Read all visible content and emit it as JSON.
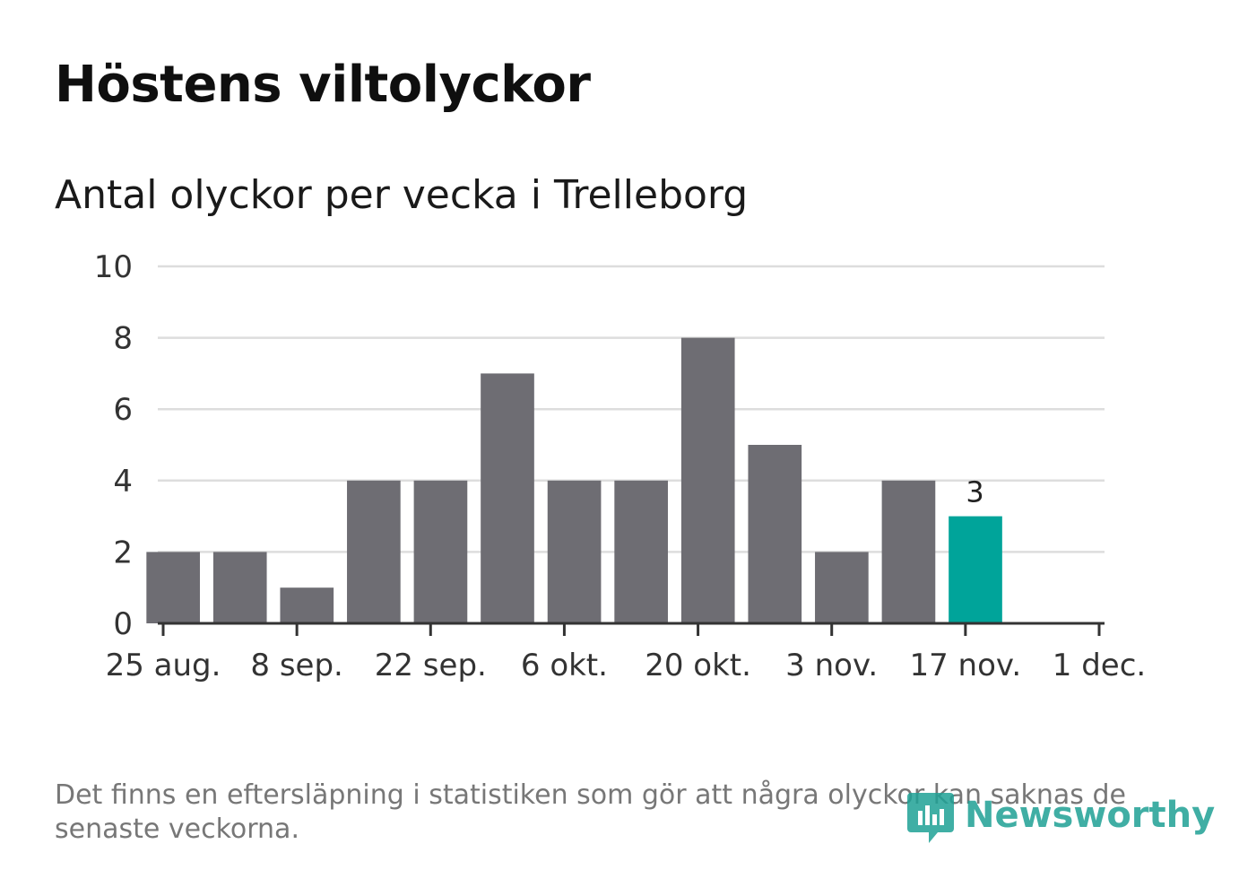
{
  "header": {
    "title": "Höstens viltolyckor",
    "subtitle": "Antal olyckor per vecka i Trelleborg"
  },
  "footer": {
    "note": "Det finns en eftersläpning i statistiken som gör att några olyckor kan saknas de senaste veckorna.",
    "brand": "Newsworthy",
    "brand_icon": "newsworthy-logo-icon"
  },
  "colors": {
    "bar": "#6e6d73",
    "highlight": "#00a49a",
    "grid": "#dddddd",
    "axis": "#333333",
    "brand": "#1fa195"
  },
  "chart_data": {
    "type": "bar",
    "title": "Höstens viltolyckor",
    "subtitle": "Antal olyckor per vecka i Trelleborg",
    "xlabel": "",
    "ylabel": "",
    "ylim": [
      0,
      10
    ],
    "yticks": [
      0,
      2,
      4,
      6,
      8,
      10
    ],
    "grid": true,
    "x_start": "2019-08-25",
    "x_end": "2019-12-01",
    "xticks": [
      {
        "date": "2019-08-25",
        "label": "25 aug."
      },
      {
        "date": "2019-09-08",
        "label": "8 sep."
      },
      {
        "date": "2019-09-22",
        "label": "22 sep."
      },
      {
        "date": "2019-10-06",
        "label": "6 okt."
      },
      {
        "date": "2019-10-20",
        "label": "20 okt."
      },
      {
        "date": "2019-11-03",
        "label": "3 nov."
      },
      {
        "date": "2019-11-17",
        "label": "17 nov."
      },
      {
        "date": "2019-12-01",
        "label": "1 dec."
      }
    ],
    "bars": [
      {
        "week_start": "2019-08-26",
        "value": 2
      },
      {
        "week_start": "2019-09-02",
        "value": 2
      },
      {
        "week_start": "2019-09-09",
        "value": 1
      },
      {
        "week_start": "2019-09-16",
        "value": 4
      },
      {
        "week_start": "2019-09-23",
        "value": 4
      },
      {
        "week_start": "2019-09-30",
        "value": 7
      },
      {
        "week_start": "2019-10-07",
        "value": 4
      },
      {
        "week_start": "2019-10-14",
        "value": 4
      },
      {
        "week_start": "2019-10-21",
        "value": 8
      },
      {
        "week_start": "2019-10-28",
        "value": 5
      },
      {
        "week_start": "2019-11-04",
        "value": 2
      },
      {
        "week_start": "2019-11-11",
        "value": 4
      },
      {
        "week_start": "2019-11-18",
        "value": 3,
        "highlight": true,
        "label": "3"
      }
    ]
  }
}
